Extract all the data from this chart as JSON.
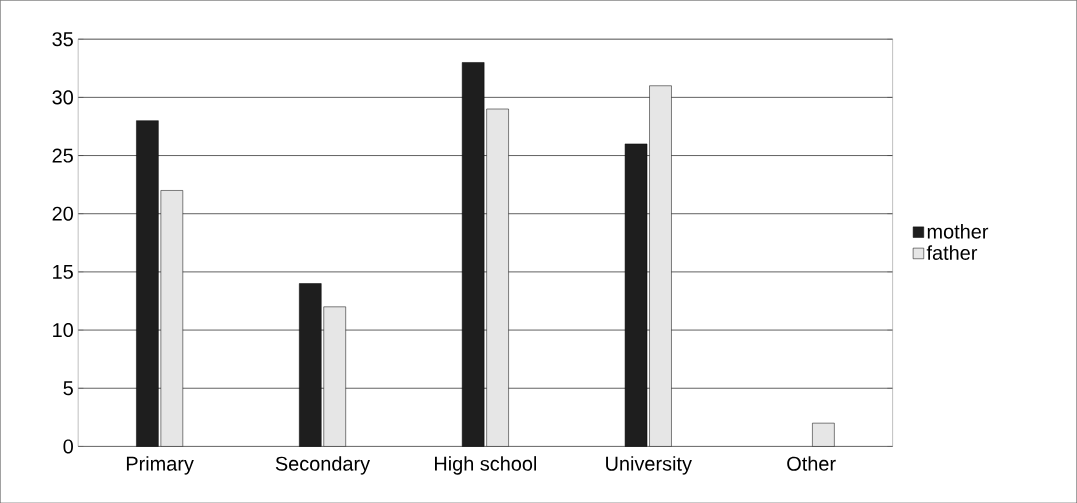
{
  "chart_data": {
    "type": "bar",
    "categories": [
      "Primary",
      "Secondary",
      "High school",
      "University",
      "Other"
    ],
    "series": [
      {
        "name": "mother",
        "color": "#1e1e1e",
        "values": [
          28,
          14,
          33,
          26,
          null
        ]
      },
      {
        "name": "father",
        "color": "#e6e6e6",
        "values": [
          22,
          12,
          29,
          31,
          2
        ]
      }
    ],
    "ylim": [
      0,
      35
    ],
    "yticks": [
      0,
      5,
      10,
      15,
      20,
      25,
      30,
      35
    ],
    "grid": "y",
    "legend": "right"
  }
}
